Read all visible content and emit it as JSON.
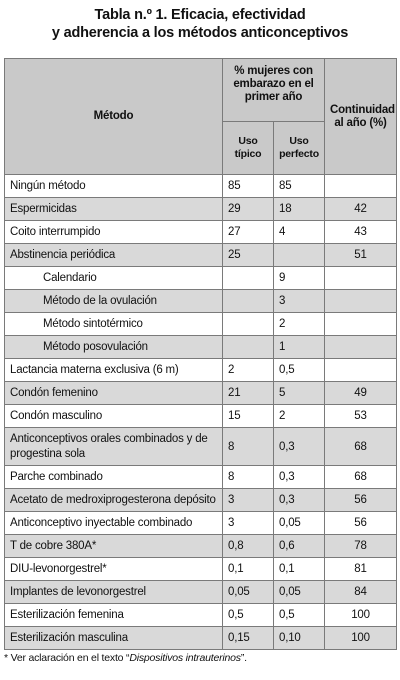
{
  "title_line1": "Tabla n.º 1. Eficacia, efectividad",
  "title_line2": "y adherencia a los métodos anticonceptivos",
  "headers": {
    "method": "Método",
    "pct": "% mujeres con embarazo en el primer año",
    "typical": "Uso típico",
    "perfect": "Uso perfecto",
    "continuity": "Continuidad al año (%)"
  },
  "rows": [
    {
      "name": "Ningún método",
      "typical": "85",
      "perfect": "85",
      "cont": "",
      "shade": false,
      "sub": false
    },
    {
      "name": "Espermicidas",
      "typical": "29",
      "perfect": "18",
      "cont": "42",
      "shade": true,
      "sub": false
    },
    {
      "name": "Coito interrumpido",
      "typical": "27",
      "perfect": "4",
      "cont": "43",
      "shade": false,
      "sub": false
    },
    {
      "name": "Abstinencia periódica",
      "typical": "25",
      "perfect": "",
      "cont": "51",
      "shade": true,
      "sub": false
    },
    {
      "name": "Calendario",
      "typical": "",
      "perfect": "9",
      "cont": "",
      "shade": false,
      "sub": true
    },
    {
      "name": "Método de la ovulación",
      "typical": "",
      "perfect": "3",
      "cont": "",
      "shade": true,
      "sub": true
    },
    {
      "name": "Método sintotérmico",
      "typical": "",
      "perfect": "2",
      "cont": "",
      "shade": false,
      "sub": true
    },
    {
      "name": "Método posovulación",
      "typical": "",
      "perfect": "1",
      "cont": "",
      "shade": true,
      "sub": true
    },
    {
      "name": "Lactancia materna exclusiva (6 m)",
      "typical": "2",
      "perfect": "0,5",
      "cont": "",
      "shade": false,
      "sub": false
    },
    {
      "name": "Condón femenino",
      "typical": "21",
      "perfect": "5",
      "cont": "49",
      "shade": true,
      "sub": false
    },
    {
      "name": "Condón masculino",
      "typical": "15",
      "perfect": "2",
      "cont": "53",
      "shade": false,
      "sub": false
    },
    {
      "name": "Anticonceptivos orales combinados y de progestina sola",
      "typical": "8",
      "perfect": "0,3",
      "cont": "68",
      "shade": true,
      "sub": false,
      "tall": true
    },
    {
      "name": "Parche combinado",
      "typical": "8",
      "perfect": "0,3",
      "cont": "68",
      "shade": false,
      "sub": false
    },
    {
      "name": "Acetato de medroxiprogesterona depósito",
      "typical": "3",
      "perfect": "0,3",
      "cont": "56",
      "shade": true,
      "sub": false
    },
    {
      "name": "Anticonceptivo inyectable combinado",
      "typical": "3",
      "perfect": "0,05",
      "cont": "56",
      "shade": false,
      "sub": false
    },
    {
      "name": "T de cobre 380A*",
      "typical": "0,8",
      "perfect": "0,6",
      "cont": "78",
      "shade": true,
      "sub": false
    },
    {
      "name": "DIU-levonorgestrel*",
      "typical": "0,1",
      "perfect": "0,1",
      "cont": "81",
      "shade": false,
      "sub": false
    },
    {
      "name": "Implantes de levonorgestrel",
      "typical": "0,05",
      "perfect": "0,05",
      "cont": "84",
      "shade": true,
      "sub": false
    },
    {
      "name": "Esterilización femenina",
      "typical": "0,5",
      "perfect": "0,5",
      "cont": "100",
      "shade": false,
      "sub": false
    },
    {
      "name": "Esterilización masculina",
      "typical": "0,15",
      "perfect": "0,10",
      "cont": "100",
      "shade": true,
      "sub": false
    }
  ],
  "footnote_prefix": "*  Ver aclaración en el texto “",
  "footnote_ref": "Dispositivos intrauterinos",
  "footnote_suffix": "”."
}
